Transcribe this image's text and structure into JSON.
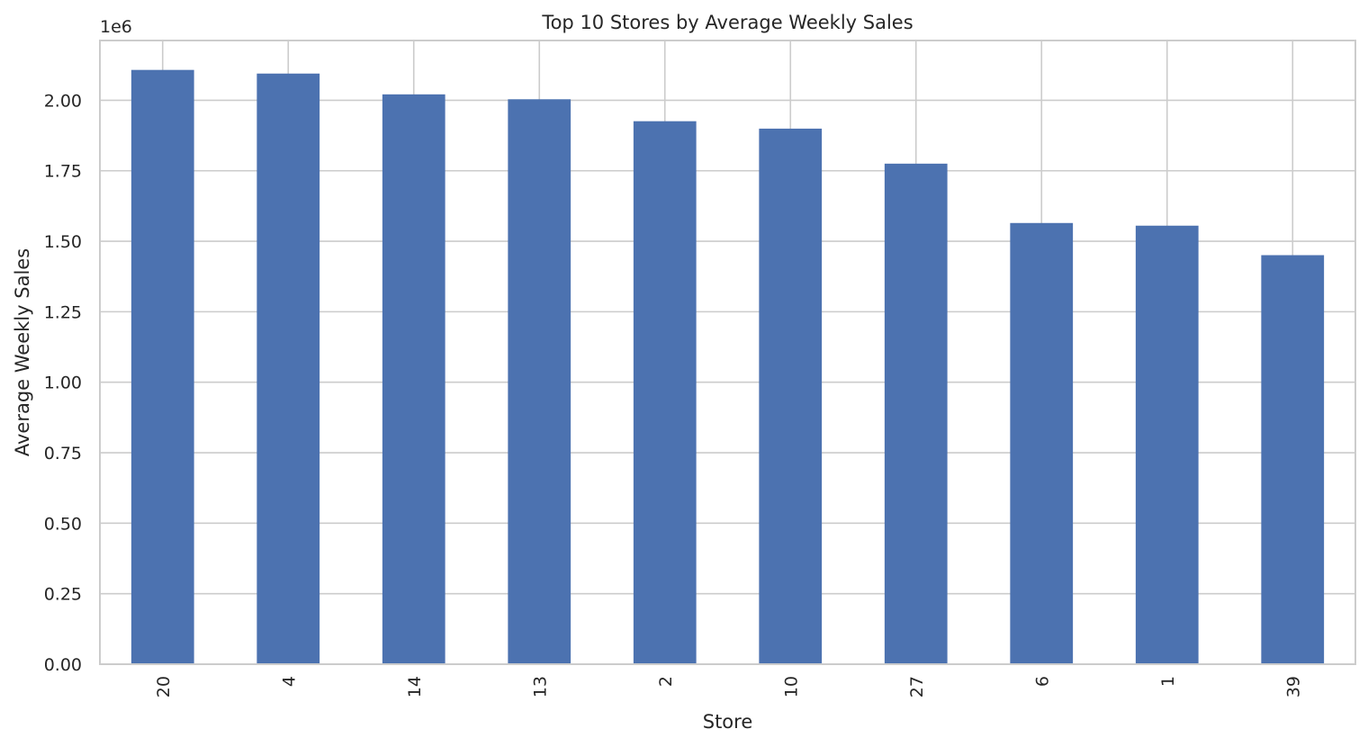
{
  "chart_data": {
    "type": "bar",
    "title": "Top 10 Stores by Average Weekly Sales",
    "xlabel": "Store",
    "ylabel": "Average Weekly Sales",
    "y_offset_label": "1e6",
    "categories": [
      "20",
      "4",
      "14",
      "13",
      "2",
      "10",
      "27",
      "6",
      "1",
      "39"
    ],
    "values": [
      2107677,
      2094713,
      2020978,
      2003620,
      1925751,
      1899425,
      1775216,
      1564728,
      1555264,
      1450668
    ],
    "ylim": [
      0,
      2212000
    ],
    "yticks": [
      0,
      250000,
      500000,
      750000,
      1000000,
      1250000,
      1500000,
      1750000,
      2000000
    ],
    "ytick_labels": [
      "0.00",
      "0.25",
      "0.50",
      "0.75",
      "1.00",
      "1.25",
      "1.50",
      "1.75",
      "2.00"
    ],
    "bar_color": "#4c72b0",
    "grid": true,
    "x_tick_rotation": "vertical"
  }
}
